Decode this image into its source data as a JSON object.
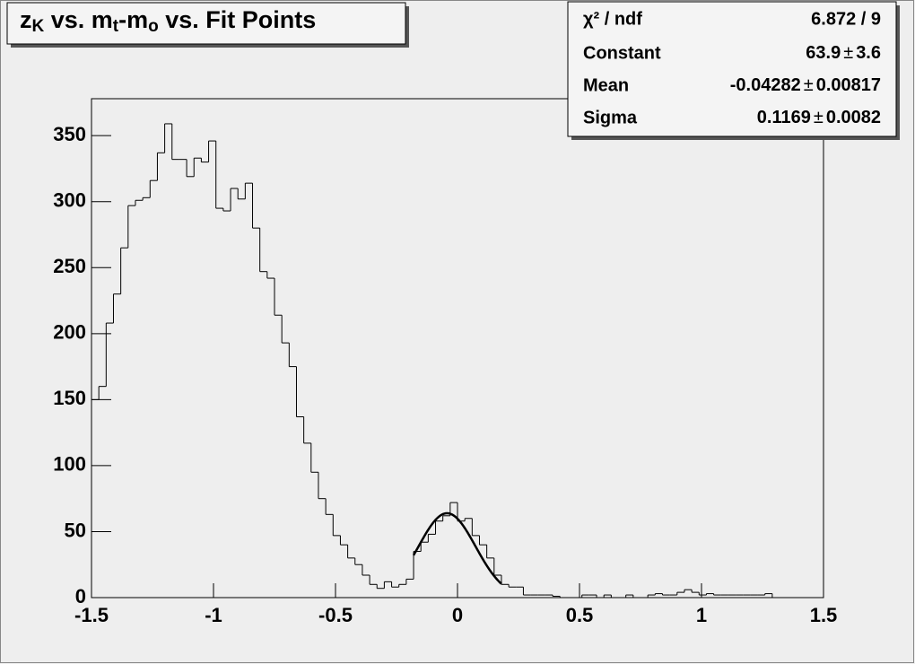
{
  "chart_data": {
    "type": "histogram",
    "title": [
      "z",
      "K",
      " vs. m",
      "t",
      "-m",
      "o",
      " vs. Fit Points"
    ],
    "bins": [
      -1.5,
      -1.47,
      -1.44,
      -1.41,
      -1.38,
      -1.35,
      -1.32,
      -1.29,
      -1.26,
      -1.23,
      -1.2,
      -1.17,
      -1.14,
      -1.11,
      -1.08,
      -1.05,
      -1.02,
      -0.99,
      -0.96,
      -0.93,
      -0.9,
      -0.87,
      -0.84,
      -0.81,
      -0.78,
      -0.75,
      -0.72,
      -0.69,
      -0.66,
      -0.63,
      -0.6,
      -0.57,
      -0.54,
      -0.51,
      -0.48,
      -0.45,
      -0.42,
      -0.39,
      -0.36,
      -0.33,
      -0.3,
      -0.27,
      -0.24,
      -0.21,
      -0.18,
      -0.15,
      -0.12,
      -0.09,
      -0.06,
      -0.03,
      0,
      0.03,
      0.06,
      0.09,
      0.12,
      0.15,
      0.18,
      0.21,
      0.24,
      0.27,
      0.3,
      0.33,
      0.36,
      0.39,
      0.42,
      0.45,
      0.48,
      0.51,
      0.54,
      0.57,
      0.6,
      0.63,
      0.66,
      0.69,
      0.72,
      0.75,
      0.78,
      0.81,
      0.84,
      0.87,
      0.9,
      0.93,
      0.96,
      0.99,
      1.02,
      1.05,
      1.08,
      1.11,
      1.14,
      1.17,
      1.2,
      1.23,
      1.26,
      1.29,
      1.32,
      1.35,
      1.38,
      1.41,
      1.44,
      1.47,
      1.5
    ],
    "values": [
      150,
      160,
      208,
      230,
      265,
      297,
      301,
      303,
      316,
      337,
      359,
      332,
      332,
      319,
      333,
      330,
      346,
      295,
      293,
      310,
      302,
      314,
      280,
      247,
      242,
      214,
      193,
      175,
      137,
      117,
      95,
      75,
      63,
      47,
      40,
      30,
      25,
      17,
      10,
      7,
      12,
      8,
      10,
      14,
      35,
      42,
      48,
      58,
      62,
      72,
      58,
      60,
      47,
      40,
      30,
      17,
      10,
      8,
      8,
      2,
      2,
      2,
      2,
      1,
      0,
      0,
      0,
      2,
      2,
      0,
      2,
      0,
      0,
      2,
      0,
      0,
      2,
      3,
      2,
      2,
      4,
      6,
      4,
      2,
      3,
      2,
      2,
      2,
      2,
      2,
      2,
      2,
      3,
      0,
      0,
      0,
      0,
      0,
      0,
      0
    ],
    "color": "#000000",
    "xlim": [
      -1.5,
      1.5
    ],
    "xticks": [
      -1.5,
      -1,
      -0.5,
      0,
      0.5,
      1,
      1.5
    ],
    "ylim": [
      0,
      378
    ],
    "yticks": [
      0,
      50,
      100,
      150,
      200,
      250,
      300,
      350
    ],
    "fit": {
      "chi2_label": "χ² / ndf",
      "chi2": "6.872 / 9",
      "plus_minus": "±",
      "range": [
        -0.18,
        0.18
      ],
      "params": [
        {
          "name": "Constant",
          "value": 63.9,
          "error": 3.6
        },
        {
          "name": "Mean",
          "value": -0.04282,
          "error": 0.00817
        },
        {
          "name": "Sigma",
          "value": 0.1169,
          "error": 0.0082
        }
      ]
    }
  }
}
